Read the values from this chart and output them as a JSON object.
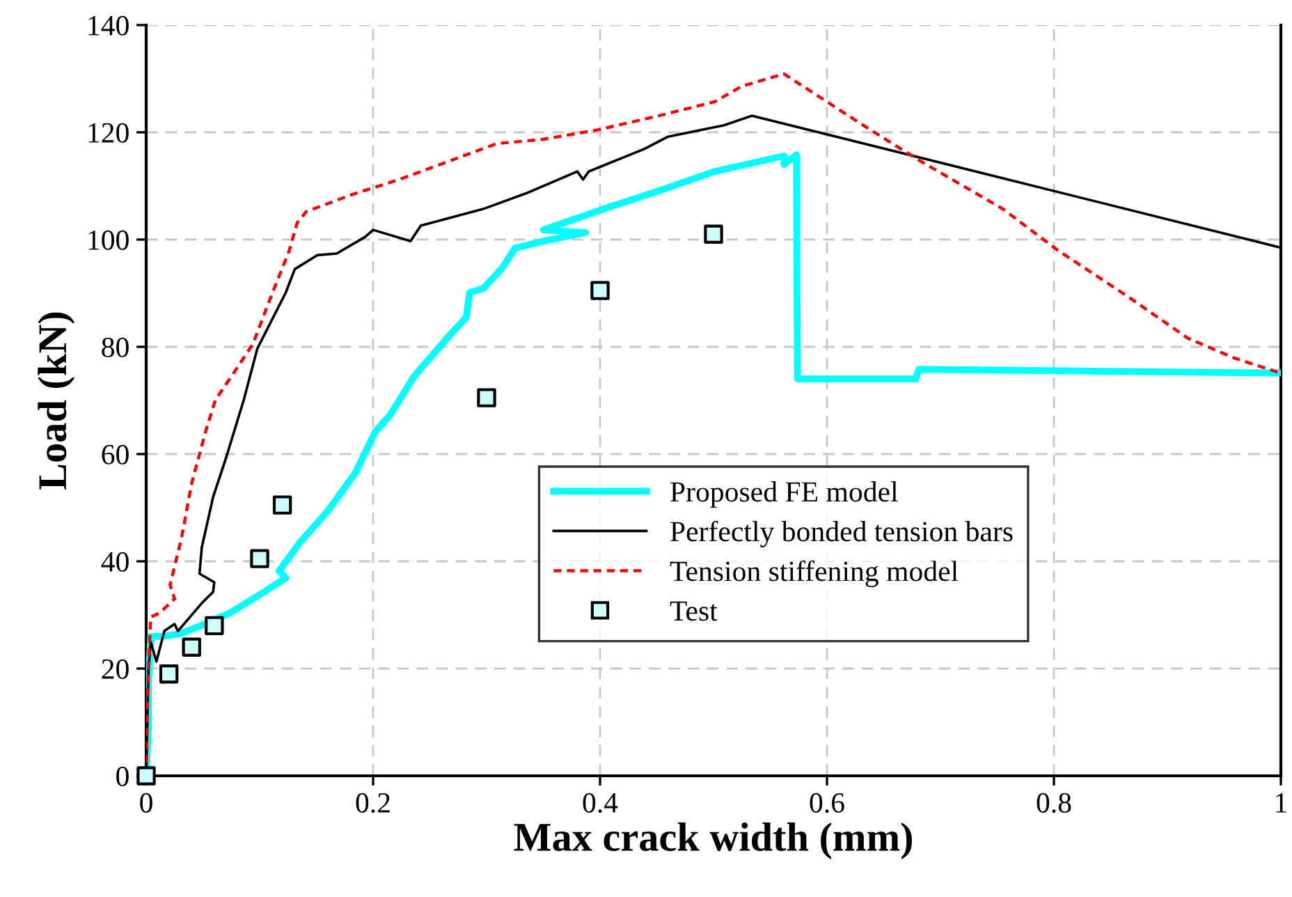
{
  "chart_data": {
    "type": "line",
    "xlabel": "Max crack width (mm)",
    "ylabel": "Load (kN)",
    "xlim": [
      0,
      1
    ],
    "ylim": [
      0,
      140
    ],
    "xticks": [
      0,
      0.2,
      0.4,
      0.6,
      0.8,
      1
    ],
    "yticks": [
      0,
      20,
      40,
      60,
      80,
      100,
      120,
      140
    ],
    "grid": true,
    "legend": "lower right",
    "series": [
      {
        "name": "Proposed FE model",
        "color": "#00ffff",
        "line_style": "solid",
        "x": [
          0,
          0.002,
          0.002,
          0.004,
          0.015,
          0.03,
          0.055,
          0.074,
          0.104,
          0.123,
          0.117,
          0.135,
          0.16,
          0.184,
          0.202,
          0.215,
          0.236,
          0.268,
          0.282,
          0.285,
          0.297,
          0.313,
          0.325,
          0.35,
          0.387,
          0.35,
          0.403,
          0.452,
          0.501,
          0.562,
          0.562,
          0.573,
          0.574,
          0.678,
          0.681,
          1.0
        ],
        "values": [
          0,
          9.6,
          17.4,
          26,
          26,
          26.5,
          28.6,
          30.4,
          34.3,
          36.9,
          38.2,
          43.4,
          49.4,
          56.4,
          64.2,
          67.3,
          74.5,
          82.3,
          85.5,
          90.1,
          90.9,
          94.5,
          98.4,
          99.7,
          101.3,
          101.8,
          105.7,
          109.1,
          112.7,
          115.6,
          114,
          115.8,
          74,
          74,
          75.8,
          75.1
        ]
      },
      {
        "name": "Perfectly bonded tension bars",
        "color": "#000000",
        "line_style": "solid",
        "x": [
          0,
          0.002,
          0.004,
          0.009,
          0.016,
          0.025,
          0.028,
          0.049,
          0.059,
          0.06,
          0.047,
          0.049,
          0.059,
          0.071,
          0.086,
          0.098,
          0.123,
          0.131,
          0.151,
          0.168,
          0.193,
          0.2,
          0.233,
          0.242,
          0.297,
          0.337,
          0.38,
          0.385,
          0.39,
          0.439,
          0.46,
          0.509,
          0.534,
          1.0
        ],
        "values": [
          0,
          20,
          25,
          21.3,
          27,
          28.3,
          27,
          32.2,
          34.3,
          36.1,
          37.7,
          42.6,
          52,
          59.7,
          70.1,
          79.7,
          90.1,
          94.5,
          97.1,
          97.4,
          100.5,
          101.8,
          99.7,
          102.6,
          105.7,
          108.8,
          112.7,
          111.2,
          112.7,
          116.9,
          119.2,
          121.3,
          123.1,
          98.5
        ]
      },
      {
        "name": "Tension stiffening model",
        "color": "#ff0000",
        "line_style": "dotted",
        "x": [
          0,
          0.002,
          0.004,
          0.012,
          0.025,
          0.021,
          0.031,
          0.04,
          0.053,
          0.061,
          0.077,
          0.094,
          0.11,
          0.126,
          0.133,
          0.141,
          0.18,
          0.223,
          0.309,
          0.35,
          0.399,
          0.452,
          0.501,
          0.525,
          0.562,
          0.632,
          0.681,
          0.755,
          0.804,
          0.865,
          0.918,
          0.959,
          0.997
        ],
        "values": [
          0,
          20,
          29.6,
          30.4,
          33,
          35.6,
          44.2,
          54.5,
          64.7,
          70.1,
          75.1,
          80.5,
          89.4,
          97.9,
          103.1,
          105.2,
          108.3,
          111.2,
          117.9,
          118.7,
          120.5,
          123.1,
          125.7,
          128.6,
          130.9,
          121.3,
          114.8,
          105.7,
          97.9,
          89.4,
          81.6,
          77.9,
          75.3
        ]
      },
      {
        "name": "Test",
        "color": "#ccffff",
        "type": "scatter",
        "marker": "square",
        "x": [
          0,
          0.02,
          0.04,
          0.06,
          0.1,
          0.12,
          0.3,
          0.4,
          0.5
        ],
        "values": [
          0,
          19,
          24,
          28,
          40.5,
          50.5,
          70.5,
          90.5,
          101
        ]
      }
    ]
  }
}
